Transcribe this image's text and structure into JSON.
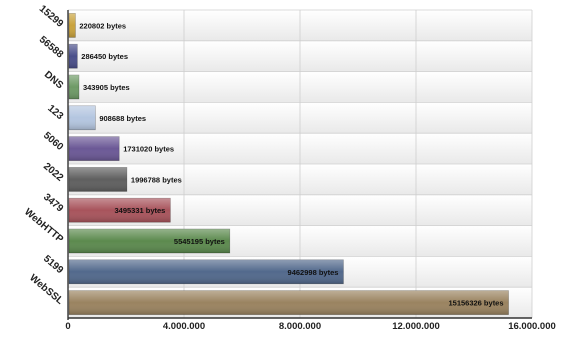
{
  "chart_data": {
    "type": "bar",
    "orientation": "horizontal",
    "title": "",
    "xlabel": "",
    "ylabel": "",
    "categories": [
      "15299",
      "56588",
      "DNS",
      "123",
      "5060",
      "2022",
      "3479",
      "WebHTTP",
      "5199",
      "WebSSL"
    ],
    "values": [
      220802,
      286450,
      343905,
      908688,
      1731020,
      1996788,
      3495331,
      5545195,
      9462998,
      15156326
    ],
    "value_labels": [
      "220802 bytes",
      "286450 bytes",
      "343905 bytes",
      "908688 bytes",
      "1731020 bytes",
      "1996788 bytes",
      "3495331 bytes",
      "5545195 bytes",
      "9462998 bytes",
      "15156326 bytes"
    ],
    "colors": [
      "#c9a23c",
      "#4a4f8a",
      "#6e9a66",
      "#b4c6e0",
      "#6b5896",
      "#5f5f5f",
      "#a8545c",
      "#5c8a4e",
      "#52698c",
      "#9a8360"
    ],
    "xlim": [
      0,
      16000000
    ],
    "xticks": [
      0,
      4000000,
      8000000,
      12000000,
      16000000
    ],
    "xtick_labels": [
      "0",
      "4.000.000",
      "8.000.000",
      "12.000.000",
      "16.000.000"
    ],
    "grid": true,
    "legend": "none"
  }
}
